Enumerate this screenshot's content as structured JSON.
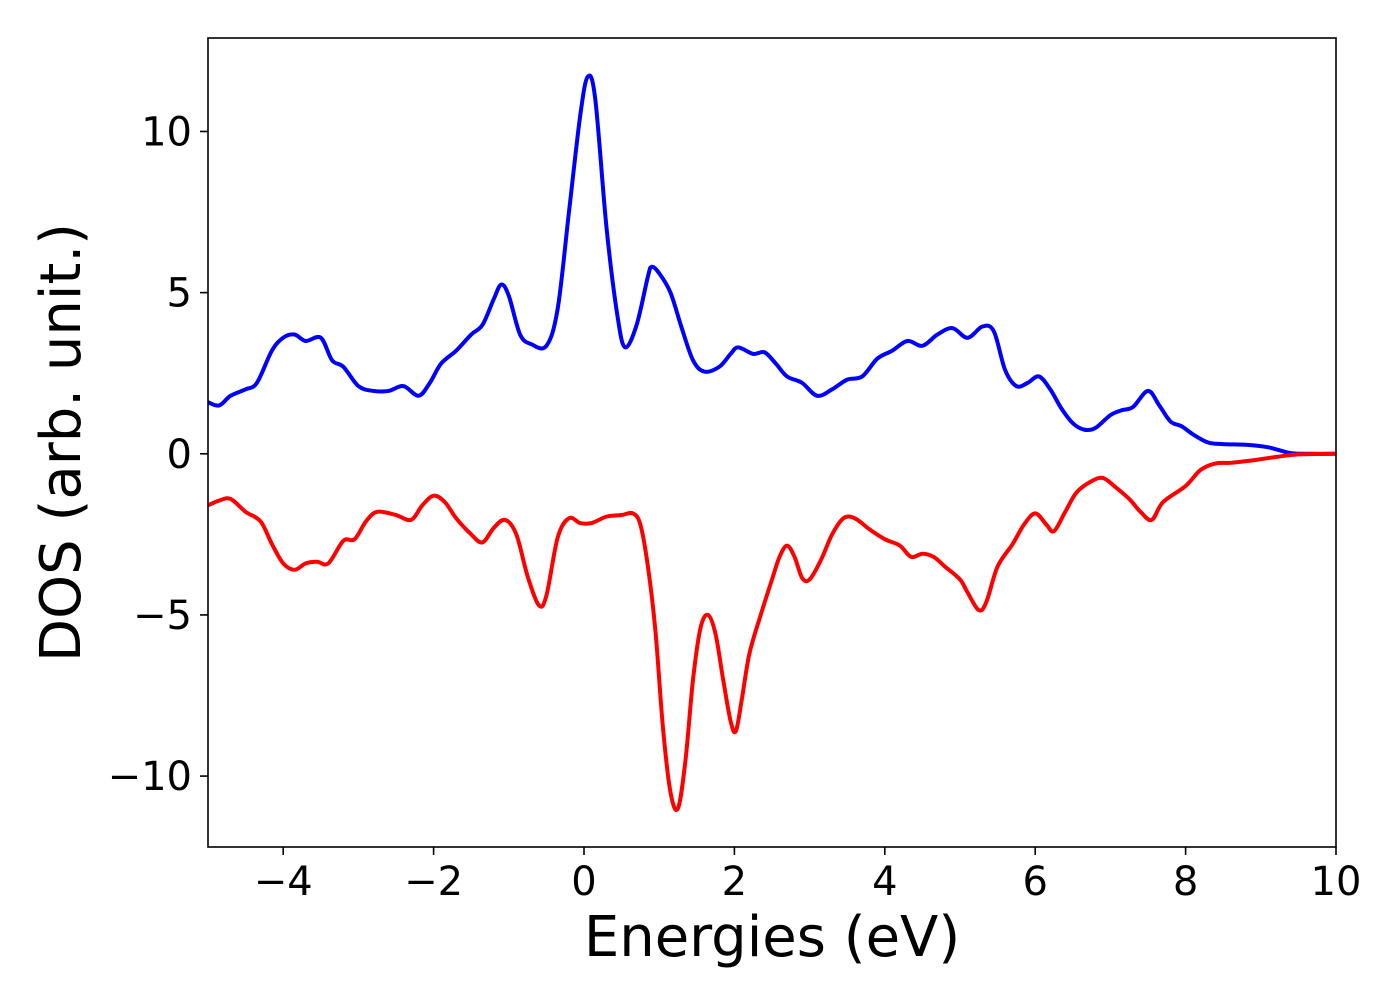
{
  "chart_data": {
    "type": "line",
    "title": "",
    "xlabel": "Energies (eV)",
    "ylabel": "DOS (arb. unit.)",
    "xlim": [
      -5,
      10
    ],
    "ylim": [
      -12.2,
      12.9
    ],
    "grid": false,
    "legend": "none",
    "x_ticks": [
      -4,
      -2,
      0,
      2,
      4,
      6,
      8,
      10
    ],
    "x_tick_labels": [
      "−4",
      "−2",
      "0",
      "2",
      "4",
      "6",
      "8",
      "10"
    ],
    "y_ticks": [
      -10,
      -5,
      0,
      5,
      10
    ],
    "y_tick_labels": [
      "−10",
      "−5",
      "0",
      "5",
      "10"
    ],
    "series": [
      {
        "color": "#0000ff",
        "points": [
          [
            -5,
            1.6
          ],
          [
            -4.85,
            1.5
          ],
          [
            -4.7,
            1.8
          ],
          [
            -4.5,
            2.0
          ],
          [
            -4.35,
            2.2
          ],
          [
            -4.15,
            3.2
          ],
          [
            -4.0,
            3.6
          ],
          [
            -3.85,
            3.7
          ],
          [
            -3.7,
            3.5
          ],
          [
            -3.5,
            3.6
          ],
          [
            -3.35,
            2.9
          ],
          [
            -3.2,
            2.7
          ],
          [
            -3.0,
            2.1
          ],
          [
            -2.8,
            1.95
          ],
          [
            -2.6,
            1.95
          ],
          [
            -2.4,
            2.1
          ],
          [
            -2.2,
            1.8
          ],
          [
            -2.05,
            2.2
          ],
          [
            -1.9,
            2.8
          ],
          [
            -1.7,
            3.2
          ],
          [
            -1.5,
            3.7
          ],
          [
            -1.35,
            4.0
          ],
          [
            -1.2,
            4.8
          ],
          [
            -1.1,
            5.25
          ],
          [
            -1.0,
            4.9
          ],
          [
            -0.85,
            3.7
          ],
          [
            -0.7,
            3.4
          ],
          [
            -0.5,
            3.35
          ],
          [
            -0.35,
            4.5
          ],
          [
            -0.2,
            7.5
          ],
          [
            -0.05,
            10.5
          ],
          [
            0.05,
            11.7
          ],
          [
            0.15,
            11.0
          ],
          [
            0.3,
            7.0
          ],
          [
            0.45,
            4.2
          ],
          [
            0.55,
            3.3
          ],
          [
            0.7,
            4.0
          ],
          [
            0.85,
            5.5
          ],
          [
            0.9,
            5.8
          ],
          [
            1.0,
            5.6
          ],
          [
            1.15,
            5.0
          ],
          [
            1.3,
            3.9
          ],
          [
            1.45,
            2.9
          ],
          [
            1.6,
            2.55
          ],
          [
            1.8,
            2.7
          ],
          [
            1.95,
            3.1
          ],
          [
            2.05,
            3.3
          ],
          [
            2.25,
            3.1
          ],
          [
            2.4,
            3.15
          ],
          [
            2.55,
            2.8
          ],
          [
            2.7,
            2.4
          ],
          [
            2.9,
            2.2
          ],
          [
            3.1,
            1.8
          ],
          [
            3.3,
            2.0
          ],
          [
            3.5,
            2.3
          ],
          [
            3.7,
            2.4
          ],
          [
            3.9,
            2.95
          ],
          [
            4.1,
            3.2
          ],
          [
            4.3,
            3.5
          ],
          [
            4.5,
            3.35
          ],
          [
            4.7,
            3.7
          ],
          [
            4.9,
            3.9
          ],
          [
            5.1,
            3.6
          ],
          [
            5.3,
            3.95
          ],
          [
            5.45,
            3.8
          ],
          [
            5.6,
            2.6
          ],
          [
            5.75,
            2.1
          ],
          [
            5.9,
            2.2
          ],
          [
            6.05,
            2.4
          ],
          [
            6.2,
            2.0
          ],
          [
            6.35,
            1.4
          ],
          [
            6.5,
            0.95
          ],
          [
            6.65,
            0.75
          ],
          [
            6.8,
            0.8
          ],
          [
            7.0,
            1.2
          ],
          [
            7.15,
            1.35
          ],
          [
            7.3,
            1.45
          ],
          [
            7.5,
            1.95
          ],
          [
            7.65,
            1.5
          ],
          [
            7.8,
            1.0
          ],
          [
            7.95,
            0.85
          ],
          [
            8.1,
            0.6
          ],
          [
            8.3,
            0.35
          ],
          [
            8.5,
            0.3
          ],
          [
            8.8,
            0.28
          ],
          [
            9.1,
            0.2
          ],
          [
            9.4,
            0.02
          ],
          [
            9.7,
            0.0
          ],
          [
            10.0,
            0.0
          ]
        ]
      },
      {
        "color": "#ff0000",
        "points": [
          [
            -5,
            -1.6
          ],
          [
            -4.85,
            -1.45
          ],
          [
            -4.7,
            -1.4
          ],
          [
            -4.5,
            -1.8
          ],
          [
            -4.3,
            -2.1
          ],
          [
            -4.15,
            -2.8
          ],
          [
            -4.0,
            -3.4
          ],
          [
            -3.85,
            -3.6
          ],
          [
            -3.7,
            -3.4
          ],
          [
            -3.55,
            -3.35
          ],
          [
            -3.4,
            -3.4
          ],
          [
            -3.2,
            -2.7
          ],
          [
            -3.05,
            -2.65
          ],
          [
            -2.9,
            -2.1
          ],
          [
            -2.75,
            -1.8
          ],
          [
            -2.5,
            -1.9
          ],
          [
            -2.3,
            -2.05
          ],
          [
            -2.15,
            -1.6
          ],
          [
            -2.0,
            -1.3
          ],
          [
            -1.85,
            -1.5
          ],
          [
            -1.7,
            -2.0
          ],
          [
            -1.5,
            -2.5
          ],
          [
            -1.35,
            -2.75
          ],
          [
            -1.2,
            -2.3
          ],
          [
            -1.05,
            -2.05
          ],
          [
            -0.9,
            -2.5
          ],
          [
            -0.75,
            -3.8
          ],
          [
            -0.6,
            -4.7
          ],
          [
            -0.5,
            -4.4
          ],
          [
            -0.35,
            -2.6
          ],
          [
            -0.2,
            -2.0
          ],
          [
            -0.05,
            -2.15
          ],
          [
            0.1,
            -2.15
          ],
          [
            0.3,
            -1.95
          ],
          [
            0.5,
            -1.9
          ],
          [
            0.65,
            -1.85
          ],
          [
            0.75,
            -2.2
          ],
          [
            0.85,
            -3.5
          ],
          [
            0.95,
            -5.5
          ],
          [
            1.05,
            -8.5
          ],
          [
            1.15,
            -10.5
          ],
          [
            1.25,
            -11.0
          ],
          [
            1.35,
            -9.5
          ],
          [
            1.45,
            -7.0
          ],
          [
            1.55,
            -5.4
          ],
          [
            1.65,
            -5.0
          ],
          [
            1.75,
            -5.6
          ],
          [
            1.85,
            -7.0
          ],
          [
            1.95,
            -8.3
          ],
          [
            2.02,
            -8.6
          ],
          [
            2.1,
            -7.6
          ],
          [
            2.2,
            -6.2
          ],
          [
            2.35,
            -5.0
          ],
          [
            2.5,
            -3.9
          ],
          [
            2.6,
            -3.2
          ],
          [
            2.7,
            -2.85
          ],
          [
            2.8,
            -3.2
          ],
          [
            2.9,
            -3.85
          ],
          [
            3.0,
            -3.9
          ],
          [
            3.15,
            -3.3
          ],
          [
            3.3,
            -2.5
          ],
          [
            3.45,
            -2.0
          ],
          [
            3.6,
            -2.0
          ],
          [
            3.8,
            -2.35
          ],
          [
            4.0,
            -2.65
          ],
          [
            4.2,
            -2.85
          ],
          [
            4.35,
            -3.2
          ],
          [
            4.5,
            -3.1
          ],
          [
            4.65,
            -3.2
          ],
          [
            4.8,
            -3.5
          ],
          [
            5.0,
            -3.9
          ],
          [
            5.1,
            -4.3
          ],
          [
            5.25,
            -4.85
          ],
          [
            5.35,
            -4.6
          ],
          [
            5.5,
            -3.5
          ],
          [
            5.7,
            -2.8
          ],
          [
            5.85,
            -2.2
          ],
          [
            6.0,
            -1.85
          ],
          [
            6.15,
            -2.2
          ],
          [
            6.25,
            -2.4
          ],
          [
            6.4,
            -1.8
          ],
          [
            6.55,
            -1.2
          ],
          [
            6.75,
            -0.85
          ],
          [
            6.9,
            -0.75
          ],
          [
            7.05,
            -1.0
          ],
          [
            7.25,
            -1.4
          ],
          [
            7.4,
            -1.8
          ],
          [
            7.55,
            -2.05
          ],
          [
            7.7,
            -1.5
          ],
          [
            8.0,
            -1.0
          ],
          [
            8.2,
            -0.5
          ],
          [
            8.4,
            -0.3
          ],
          [
            8.6,
            -0.28
          ],
          [
            8.9,
            -0.2
          ],
          [
            9.2,
            -0.1
          ],
          [
            9.5,
            -0.02
          ],
          [
            10.0,
            0.0
          ]
        ]
      }
    ]
  }
}
